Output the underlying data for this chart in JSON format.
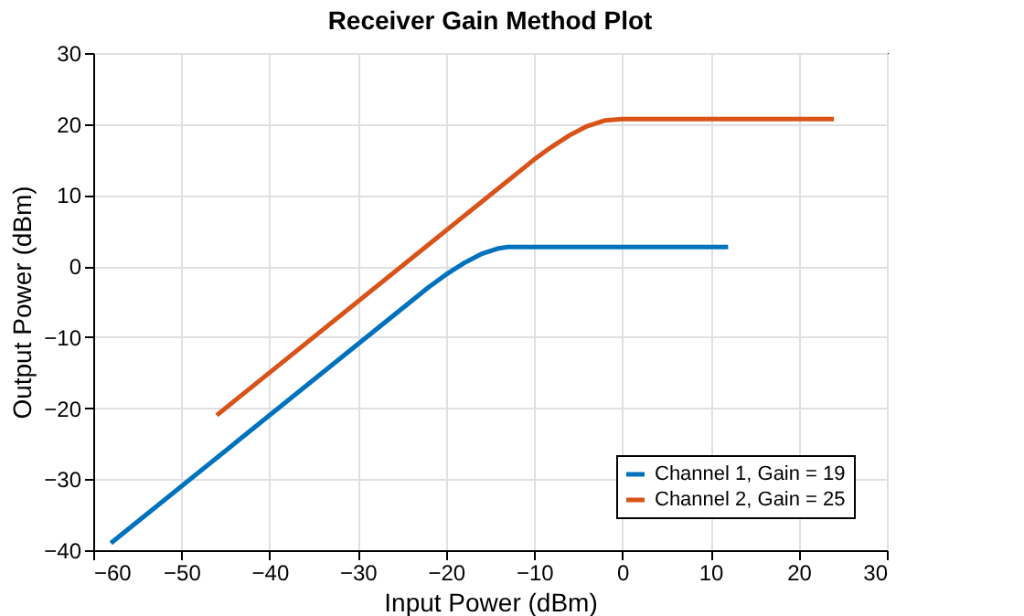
{
  "chart_data": {
    "type": "line",
    "title": "Receiver Gain Method Plot",
    "xlabel": "Input Power (dBm)",
    "ylabel": "Output Power (dBm)",
    "xlim": [
      -60,
      30
    ],
    "xticks": [
      -60,
      -50,
      -40,
      -30,
      -20,
      -10,
      0,
      10,
      20,
      30
    ],
    "ylim": [
      -40,
      30
    ],
    "yticks": [
      -40,
      -30,
      -20,
      -10,
      0,
      10,
      20,
      30
    ],
    "grid": true,
    "legend": "bottom right",
    "line_style": "solid",
    "marker": "none",
    "series": [
      {
        "name": "Channel 1, Gain = 19",
        "color": "#0072bd",
        "x": [
          -58,
          -22,
          -20,
          -18,
          -16,
          -14,
          -13,
          12
        ],
        "values": [
          -39,
          -3,
          -1.2,
          0.4,
          1.7,
          2.5,
          2.7,
          2.7
        ]
      },
      {
        "name": "Channel 2, Gain = 25",
        "color": "#d95319",
        "x": [
          -46,
          -10,
          -8,
          -6,
          -4,
          -2,
          0,
          24
        ],
        "values": [
          -21,
          15,
          16.8,
          18.4,
          19.7,
          20.5,
          20.7,
          20.7
        ]
      }
    ]
  }
}
